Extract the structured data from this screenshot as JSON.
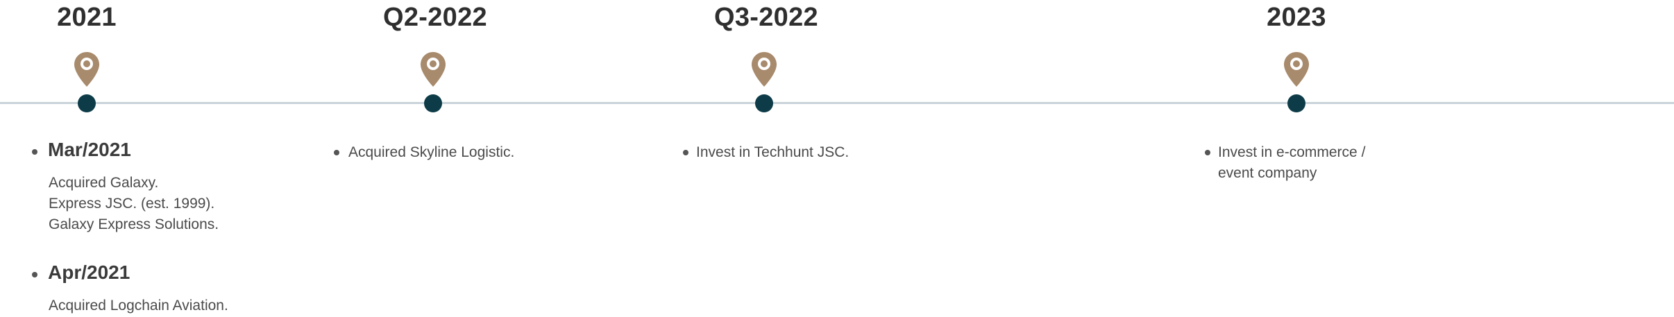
{
  "milestones": [
    {
      "year": "2021",
      "entries": [
        {
          "heading": "Mar/2021",
          "lines": [
            "Acquired Galaxy.",
            "Express JSC. (est. 1999).",
            "Galaxy Express Solutions."
          ]
        },
        {
          "heading": "Apr/2021",
          "lines": [
            "Acquired Logchain Aviation."
          ]
        }
      ]
    },
    {
      "year": "Q2-2022",
      "entries": [
        {
          "lines": [
            "Acquired Skyline Logistic."
          ]
        }
      ]
    },
    {
      "year": "Q3-2022",
      "entries": [
        {
          "lines": [
            "Invest in Techhunt JSC."
          ]
        }
      ]
    },
    {
      "year": "2023",
      "entries": [
        {
          "lines": [
            "Invest in e-commerce /",
            "event company"
          ]
        }
      ]
    }
  ],
  "colors": {
    "pin": "#a88a6c",
    "dot": "#0d3c48",
    "line": "#c8d3d9"
  },
  "icons": {
    "pin": "map-pin-icon"
  }
}
